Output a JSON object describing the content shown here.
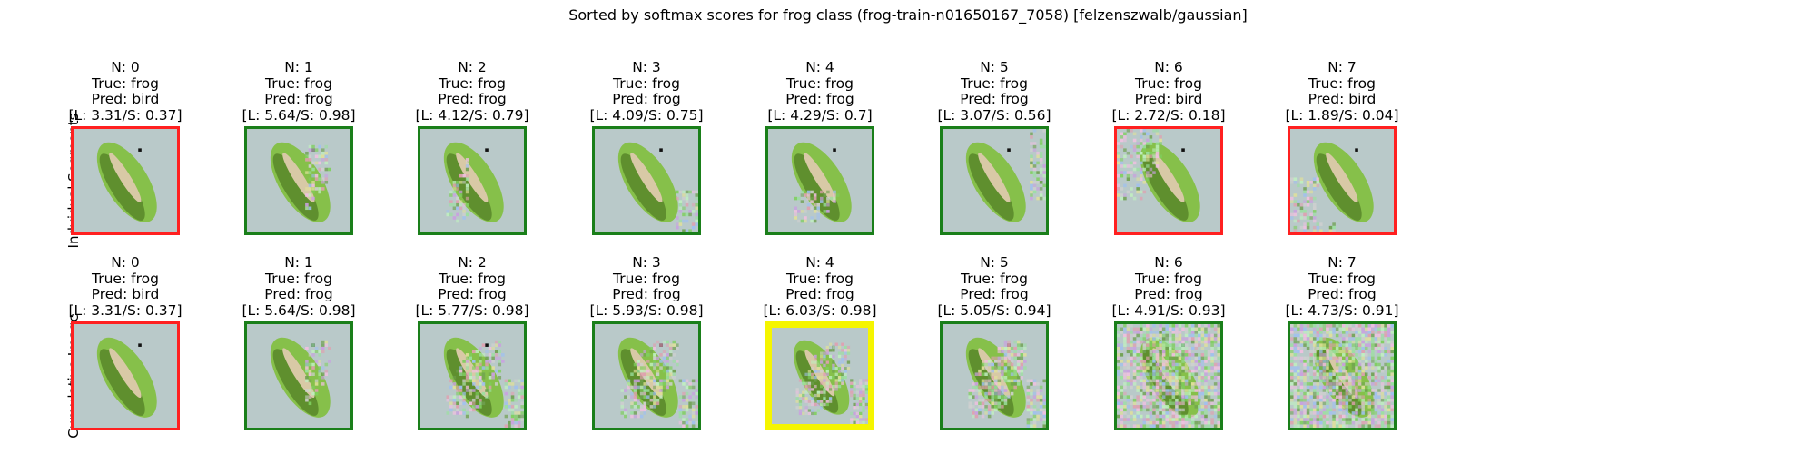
{
  "figure": {
    "title": "Sorted by softmax scores for frog class (frog-train-n01650167_7058) [felzenszwalb/gaussian]"
  },
  "colors": {
    "correct": "#1a7f1a",
    "wrong": "#ff2020",
    "best": "#f5f500",
    "background": "#b9c9c9",
    "frog_light": "#86c04a",
    "frog_dark": "#5f8f2e",
    "frog_belly": "#d8c9a6"
  },
  "rows": [
    {
      "label": "Indvidual Segments",
      "panels": [
        {
          "n": "N: 0",
          "true_label": "True: frog",
          "pred_label": "Pred: bird",
          "score": "[L: 3.31/S: 0.37]",
          "status": "wrong",
          "noise_level": 0,
          "noise_region": "none"
        },
        {
          "n": "N: 1",
          "true_label": "True: frog",
          "pred_label": "Pred: frog",
          "score": "[L: 5.64/S: 0.98]",
          "status": "correct",
          "noise_level": 1,
          "noise_region": "frog-right"
        },
        {
          "n": "N: 2",
          "true_label": "True: frog",
          "pred_label": "Pred: frog",
          "score": "[L: 4.12/S: 0.79]",
          "status": "correct",
          "noise_level": 1,
          "noise_region": "frog-left"
        },
        {
          "n": "N: 3",
          "true_label": "True: frog",
          "pred_label": "Pred: frog",
          "score": "[L: 4.09/S: 0.75]",
          "status": "correct",
          "noise_level": 1,
          "noise_region": "bottom-right"
        },
        {
          "n": "N: 4",
          "true_label": "True: frog",
          "pred_label": "Pred: frog",
          "score": "[L: 4.29/S: 0.7]",
          "status": "correct",
          "noise_level": 1,
          "noise_region": "frog-bottom"
        },
        {
          "n": "N: 5",
          "true_label": "True: frog",
          "pred_label": "Pred: frog",
          "score": "[L: 3.07/S: 0.56]",
          "status": "correct",
          "noise_level": 1,
          "noise_region": "right-edge"
        },
        {
          "n": "N: 6",
          "true_label": "True: frog",
          "pred_label": "Pred: bird",
          "score": "[L: 2.72/S: 0.18]",
          "status": "wrong",
          "noise_level": 1,
          "noise_region": "top-left"
        },
        {
          "n": "N: 7",
          "true_label": "True: frog",
          "pred_label": "Pred: bird",
          "score": "[L: 1.89/S: 0.04]",
          "status": "wrong",
          "noise_level": 1,
          "noise_region": "bottom-left"
        }
      ]
    },
    {
      "label": "Cumulative Image",
      "panels": [
        {
          "n": "N: 0",
          "true_label": "True: frog",
          "pred_label": "Pred: bird",
          "score": "[L: 3.31/S: 0.37]",
          "status": "wrong",
          "noise_level": 0,
          "noise_region": "none"
        },
        {
          "n": "N: 1",
          "true_label": "True: frog",
          "pred_label": "Pred: frog",
          "score": "[L: 5.64/S: 0.98]",
          "status": "correct",
          "noise_level": 1,
          "noise_region": "frog-right"
        },
        {
          "n": "N: 2",
          "true_label": "True: frog",
          "pred_label": "Pred: frog",
          "score": "[L: 5.77/S: 0.98]",
          "status": "correct",
          "noise_level": 2,
          "noise_region": "frog"
        },
        {
          "n": "N: 3",
          "true_label": "True: frog",
          "pred_label": "Pred: frog",
          "score": "[L: 5.93/S: 0.98]",
          "status": "correct",
          "noise_level": 3,
          "noise_region": "frog"
        },
        {
          "n": "N: 4",
          "true_label": "True: frog",
          "pred_label": "Pred: frog",
          "score": "[L: 6.03/S: 0.98]",
          "status": "best",
          "noise_level": 4,
          "noise_region": "frog"
        },
        {
          "n": "N: 5",
          "true_label": "True: frog",
          "pred_label": "Pred: frog",
          "score": "[L: 5.05/S: 0.94]",
          "status": "correct",
          "noise_level": 5,
          "noise_region": "frog"
        },
        {
          "n": "N: 6",
          "true_label": "True: frog",
          "pred_label": "Pred: frog",
          "score": "[L: 4.91/S: 0.93]",
          "status": "correct",
          "noise_level": 6,
          "noise_region": "all"
        },
        {
          "n": "N: 7",
          "true_label": "True: frog",
          "pred_label": "Pred: frog",
          "score": "[L: 4.73/S: 0.91]",
          "status": "correct",
          "noise_level": 7,
          "noise_region": "all"
        }
      ]
    }
  ]
}
